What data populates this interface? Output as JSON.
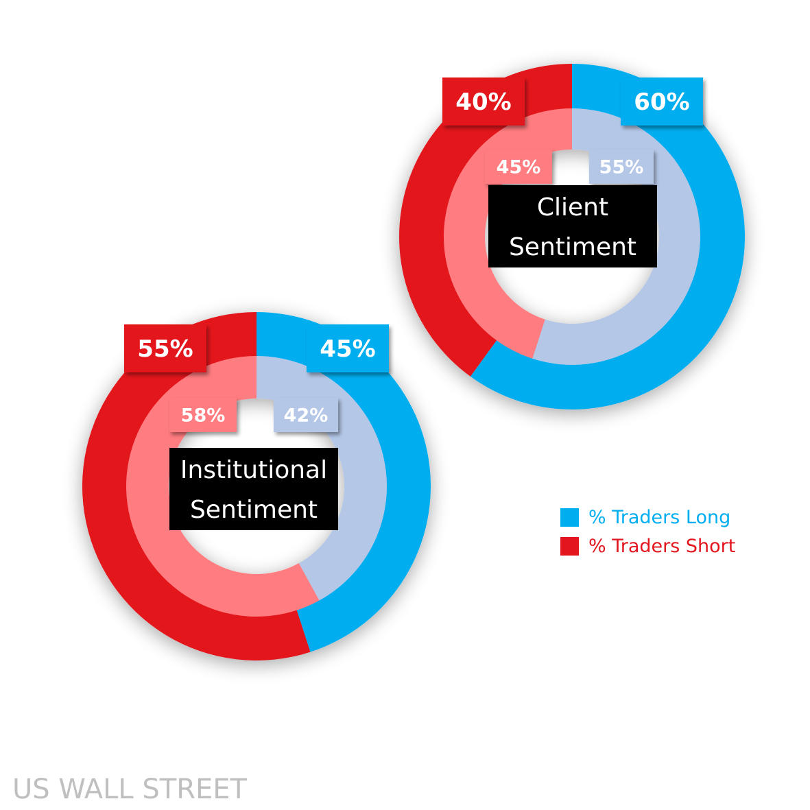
{
  "chart_data": [
    {
      "type": "pie",
      "title": "Client Sentiment",
      "title_lines": [
        "Client",
        "Sentiment"
      ],
      "outer": {
        "long": 60,
        "short": 40,
        "long_label": "60%",
        "short_label": "40%"
      },
      "inner": {
        "long": 55,
        "short": 45,
        "long_label": "55%",
        "short_label": "45%"
      }
    },
    {
      "type": "pie",
      "title": "Institutional Sentiment",
      "title_lines": [
        "Institutional",
        "Sentiment"
      ],
      "outer": {
        "long": 45,
        "short": 55,
        "long_label": "45%",
        "short_label": "55%"
      },
      "inner": {
        "long": 42,
        "short": 58,
        "long_label": "42%",
        "short_label": "58%"
      }
    }
  ],
  "legend": {
    "long_label": "% Traders Long",
    "short_label": "% Traders Short"
  },
  "colors": {
    "long": "#00aeef",
    "short": "#e3151e",
    "long_light": "#b4c7e7",
    "short_light": "#ff7c80",
    "title_box": "#000000"
  },
  "watermark": "US WALL STREET"
}
